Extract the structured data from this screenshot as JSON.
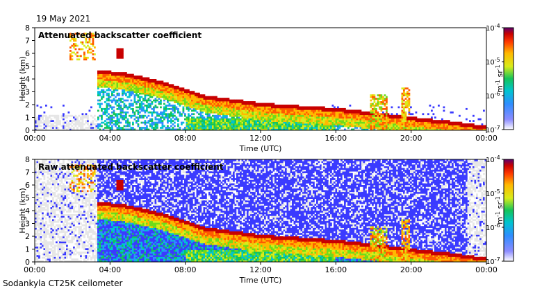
{
  "date": "19 May 2021",
  "footer": "Sodankyla CT25K ceilometer",
  "colors": {
    "colormap": [
      "#3a3aff",
      "#2f8dff",
      "#00c4d0",
      "#13c45a",
      "#6edc1a",
      "#d8ec1a",
      "#ffb800",
      "#ff5a00",
      "#c80000",
      "#7a0040"
    ],
    "background": "#e6e6e6"
  },
  "chart_data": [
    {
      "type": "heatmap",
      "title": "Attenuated backscatter coefficient",
      "xlabel": "Time (UTC)",
      "ylabel": "Height (km)",
      "xlim": [
        0,
        24
      ],
      "ylim": [
        0,
        8
      ],
      "x_ticks": [
        "00:00",
        "04:00",
        "08:00",
        "12:00",
        "16:00",
        "20:00",
        "00:00"
      ],
      "y_ticks": [
        "0",
        "1",
        "2",
        "3",
        "4",
        "5",
        "6",
        "7",
        "8"
      ],
      "colorbar": {
        "label": "m-1 sr-1",
        "scale": "log",
        "range": [
          1e-07,
          0.0001
        ],
        "ticks": [
          "10-7",
          "10-6",
          "10-5",
          "10-4"
        ]
      },
      "layer_top_km": [
        [
          3.3,
          4.6
        ],
        [
          5,
          4.3
        ],
        [
          7,
          3.6
        ],
        [
          9,
          2.6
        ],
        [
          12,
          2.0
        ],
        [
          16,
          1.6
        ],
        [
          18,
          1.3
        ],
        [
          20,
          0.9
        ],
        [
          22,
          0.6
        ],
        [
          24,
          0.2
        ]
      ]
    },
    {
      "type": "heatmap",
      "title": "Raw attenuated backscatter coefficient",
      "xlabel": "Time (UTC)",
      "ylabel": "Height (km)",
      "xlim": [
        0,
        24
      ],
      "ylim": [
        0,
        8
      ],
      "x_ticks": [
        "00:00",
        "04:00",
        "08:00",
        "12:00",
        "16:00",
        "20:00",
        "00:00"
      ],
      "y_ticks": [
        "0",
        "1",
        "2",
        "3",
        "4",
        "5",
        "6",
        "7",
        "8"
      ],
      "colorbar": {
        "label": "m-1 sr-1",
        "scale": "log",
        "range": [
          1e-07,
          0.0001
        ],
        "ticks": [
          "10-7",
          "10-6",
          "10-5",
          "10-4"
        ]
      },
      "layer_top_km": [
        [
          3.3,
          4.6
        ],
        [
          5,
          4.3
        ],
        [
          7,
          3.6
        ],
        [
          9,
          2.6
        ],
        [
          12,
          2.0
        ],
        [
          16,
          1.6
        ],
        [
          18,
          1.3
        ],
        [
          20,
          0.9
        ],
        [
          22,
          0.6
        ],
        [
          24,
          0.2
        ]
      ]
    }
  ]
}
